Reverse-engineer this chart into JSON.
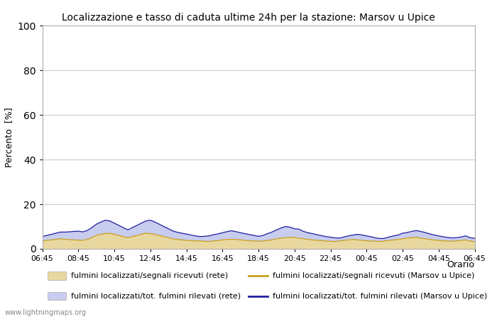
{
  "title": "Localizzazione e tasso di caduta ultime 24h per la stazione: Marsov u Upice",
  "ylabel": "Percento  [%]",
  "xlabel": "Orario",
  "ylim": [
    0,
    100
  ],
  "yticks": [
    0,
    20,
    40,
    60,
    80,
    100
  ],
  "x_tick_labels": [
    "06:45",
    "08:45",
    "10:45",
    "12:45",
    "14:45",
    "16:45",
    "18:45",
    "20:45",
    "22:45",
    "00:45",
    "02:45",
    "04:45",
    "06:45"
  ],
  "background_color": "#ffffff",
  "plot_bg_color": "#ffffff",
  "grid_color": "#cccccc",
  "fill_rete_color": "#e8d8a0",
  "fill_tot_color": "#c8ccee",
  "line_rete_color": "#c8a020",
  "line_tot_color": "#2020a0",
  "watermark": "www.lightningmaps.org",
  "fill_rete": [
    3.5,
    3.8,
    4.0,
    4.2,
    4.5,
    4.3,
    4.1,
    4.0,
    3.9,
    3.8,
    4.2,
    5.0,
    6.0,
    6.5,
    6.8,
    7.0,
    6.5,
    6.0,
    5.5,
    5.0,
    5.5,
    6.0,
    6.5,
    7.0,
    6.8,
    6.5,
    6.0,
    5.5,
    5.0,
    4.5,
    4.2,
    4.0,
    3.8,
    3.7,
    3.6,
    3.5,
    3.4,
    3.3,
    3.5,
    3.7,
    4.0,
    4.2,
    4.3,
    4.2,
    4.0,
    3.8,
    3.6,
    3.5,
    3.4,
    3.5,
    3.8,
    4.0,
    4.5,
    4.8,
    5.0,
    5.2,
    5.0,
    4.8,
    4.5,
    4.2,
    4.0,
    3.8,
    3.7,
    3.5,
    3.4,
    3.3,
    3.5,
    3.8,
    4.0,
    4.2,
    4.0,
    3.8,
    3.6,
    3.5,
    3.4,
    3.3,
    3.5,
    3.8,
    4.0,
    4.2,
    4.5,
    4.8,
    5.0,
    5.2,
    4.8,
    4.5,
    4.2,
    4.0,
    3.8,
    3.6,
    3.5,
    3.4,
    3.5,
    3.8,
    4.0,
    3.5,
    3.2
  ],
  "fill_tot": [
    5.5,
    6.0,
    6.5,
    7.0,
    7.5,
    7.5,
    7.6,
    7.8,
    7.9,
    7.6,
    8.2,
    9.5,
    11.0,
    12.0,
    12.8,
    12.5,
    11.5,
    10.5,
    9.5,
    8.5,
    9.5,
    10.5,
    11.5,
    12.5,
    12.8,
    12.0,
    11.0,
    10.0,
    9.0,
    8.0,
    7.4,
    7.0,
    6.6,
    6.2,
    5.8,
    5.5,
    5.6,
    5.8,
    6.3,
    6.7,
    7.2,
    7.7,
    8.1,
    7.7,
    7.2,
    6.8,
    6.4,
    6.0,
    5.6,
    6.0,
    6.8,
    7.5,
    8.5,
    9.3,
    10.0,
    9.7,
    9.0,
    8.8,
    7.8,
    7.2,
    6.8,
    6.3,
    5.9,
    5.5,
    5.2,
    4.9,
    4.8,
    5.3,
    5.8,
    6.2,
    6.5,
    6.2,
    5.8,
    5.4,
    4.9,
    4.6,
    4.7,
    5.3,
    5.8,
    6.2,
    7.0,
    7.3,
    7.8,
    8.2,
    7.8,
    7.3,
    6.7,
    6.2,
    5.8,
    5.4,
    5.1,
    4.9,
    5.0,
    5.3,
    5.8,
    5.0,
    4.7
  ],
  "legend": [
    {
      "label": "fulmini localizzati/segnali ricevuti (rete)",
      "type": "fill",
      "color": "#e8d8a0"
    },
    {
      "label": "fulmini localizzati/segnali ricevuti (Marsov u Upice)",
      "type": "line",
      "color": "#c8a020"
    },
    {
      "label": "fulmini localizzati/tot. fulmini rilevati (rete)",
      "type": "fill",
      "color": "#c8ccee"
    },
    {
      "label": "fulmini localizzati/tot. fulmini rilevati (Marsov u Upice)",
      "type": "line",
      "color": "#2020a0"
    }
  ]
}
